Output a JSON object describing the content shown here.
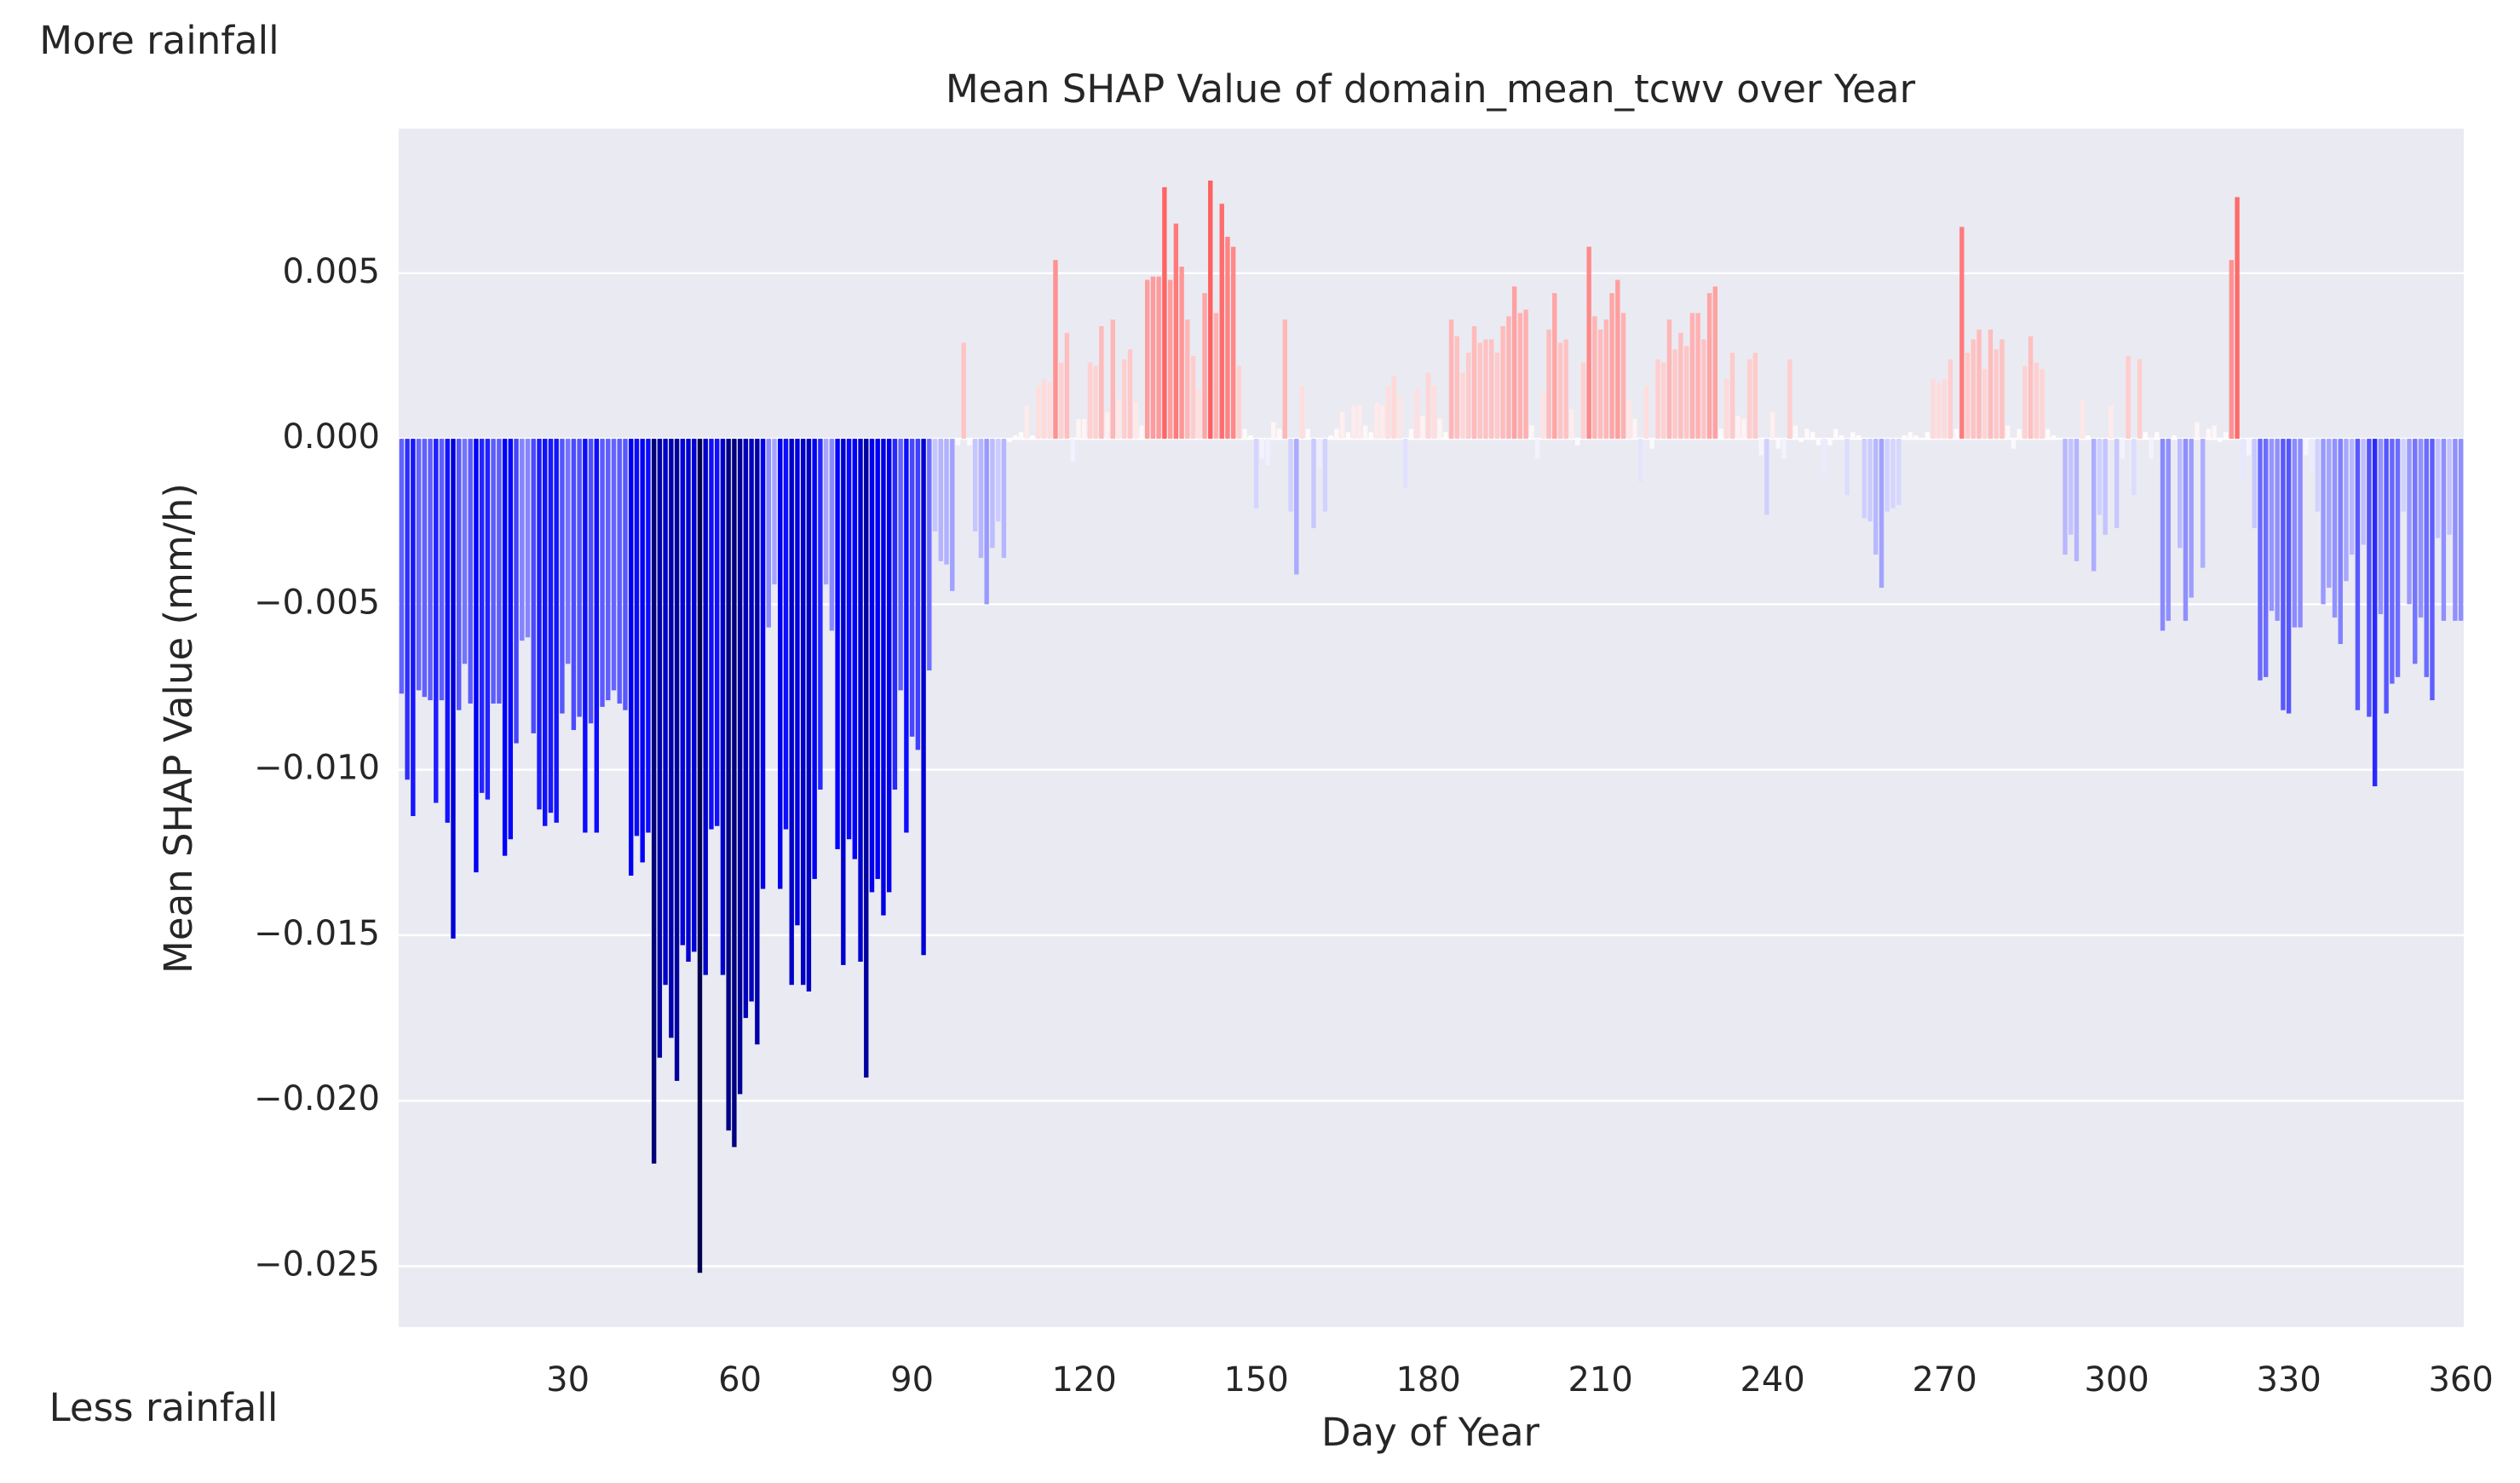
{
  "chart_data": {
    "type": "bar",
    "title": "Mean SHAP Value of domain_mean_tcwv over Year",
    "xlabel": "Day of Year",
    "ylabel": "Mean SHAP Value (mm/h)",
    "annotations": [
      "More rainfall",
      "Less rainfall"
    ],
    "colormap": "seismic",
    "color_range": [
      -0.025,
      0.025
    ],
    "grid": true,
    "xlim": [
      0.5,
      360.5
    ],
    "ylim": [
      -0.02684,
      0.00937
    ],
    "xticks": [
      30,
      60,
      90,
      120,
      150,
      180,
      210,
      240,
      270,
      300,
      330,
      360
    ],
    "yticks": [
      {
        "value": -0.025,
        "label": "−0.025"
      },
      {
        "value": -0.02,
        "label": "−0.020"
      },
      {
        "value": -0.015,
        "label": "−0.015"
      },
      {
        "value": -0.01,
        "label": "−0.010"
      },
      {
        "value": -0.005,
        "label": "−0.005"
      },
      {
        "value": 0,
        "label": "0.000"
      },
      {
        "value": 0.005,
        "label": "0.005"
      }
    ],
    "x": [
      1,
      2,
      3,
      4,
      5,
      6,
      7,
      8,
      9,
      10,
      11,
      12,
      13,
      14,
      15,
      16,
      17,
      18,
      19,
      20,
      21,
      22,
      23,
      24,
      25,
      26,
      27,
      28,
      29,
      30,
      31,
      32,
      33,
      34,
      35,
      36,
      37,
      38,
      39,
      40,
      41,
      42,
      43,
      44,
      45,
      46,
      47,
      48,
      49,
      50,
      51,
      52,
      53,
      54,
      55,
      56,
      57,
      58,
      59,
      60,
      61,
      62,
      63,
      64,
      65,
      66,
      67,
      68,
      69,
      70,
      71,
      72,
      73,
      74,
      75,
      76,
      77,
      78,
      79,
      80,
      81,
      82,
      83,
      84,
      85,
      86,
      87,
      88,
      89,
      90,
      91,
      92,
      93,
      94,
      95,
      96,
      97,
      98,
      99,
      100,
      101,
      102,
      103,
      104,
      105,
      106,
      107,
      108,
      109,
      110,
      111,
      112,
      113,
      114,
      115,
      116,
      117,
      118,
      119,
      120,
      121,
      122,
      123,
      124,
      125,
      126,
      127,
      128,
      129,
      130,
      131,
      132,
      133,
      134,
      135,
      136,
      137,
      138,
      139,
      140,
      141,
      142,
      143,
      144,
      145,
      146,
      147,
      148,
      149,
      150,
      151,
      152,
      153,
      154,
      155,
      156,
      157,
      158,
      159,
      160,
      161,
      162,
      163,
      164,
      165,
      166,
      167,
      168,
      169,
      170,
      171,
      172,
      173,
      174,
      175,
      176,
      177,
      178,
      179,
      180,
      181,
      182,
      183,
      184,
      185,
      186,
      187,
      188,
      189,
      190,
      191,
      192,
      193,
      194,
      195,
      196,
      197,
      198,
      199,
      200,
      201,
      202,
      203,
      204,
      205,
      206,
      207,
      208,
      209,
      210,
      211,
      212,
      213,
      214,
      215,
      216,
      217,
      218,
      219,
      220,
      221,
      222,
      223,
      224,
      225,
      226,
      227,
      228,
      229,
      230,
      231,
      232,
      233,
      234,
      235,
      236,
      237,
      238,
      239,
      240,
      241,
      242,
      243,
      244,
      245,
      246,
      247,
      248,
      249,
      250,
      251,
      252,
      253,
      254,
      255,
      256,
      257,
      258,
      259,
      260,
      261,
      262,
      263,
      264,
      265,
      266,
      267,
      268,
      269,
      270,
      271,
      272,
      273,
      274,
      275,
      276,
      277,
      278,
      279,
      280,
      281,
      282,
      283,
      284,
      285,
      286,
      287,
      288,
      289,
      290,
      291,
      292,
      293,
      294,
      295,
      296,
      297,
      298,
      299,
      300,
      301,
      302,
      303,
      304,
      305,
      306,
      307,
      308,
      309,
      310,
      311,
      312,
      313,
      314,
      315,
      316,
      317,
      318,
      319,
      320,
      321,
      322,
      323,
      324,
      325,
      326,
      327,
      328,
      329,
      330,
      331,
      332,
      333,
      334,
      335,
      336,
      337,
      338,
      339,
      340,
      341,
      342,
      343,
      344,
      345,
      346,
      347,
      348,
      349,
      350,
      351,
      352,
      353,
      354,
      355,
      356,
      357,
      358,
      359,
      360
    ],
    "values": [
      -0.0077,
      -0.0103,
      -0.0114,
      -0.0076,
      -0.0078,
      -0.0079,
      -0.011,
      -0.0079,
      -0.0116,
      -0.0151,
      -0.0082,
      -0.0068,
      -0.008,
      -0.0131,
      -0.0107,
      -0.0109,
      -0.008,
      -0.008,
      -0.0126,
      -0.0121,
      -0.0092,
      -0.0061,
      -0.006,
      -0.0089,
      -0.0112,
      -0.0117,
      -0.0113,
      -0.0116,
      -0.0083,
      -0.0068,
      -0.0088,
      -0.0084,
      -0.0119,
      -0.0086,
      -0.0119,
      -0.0081,
      -0.0079,
      -0.0076,
      -0.008,
      -0.0082,
      -0.0132,
      -0.012,
      -0.0128,
      -0.0119,
      -0.0219,
      -0.0187,
      -0.0165,
      -0.0181,
      -0.0194,
      -0.0153,
      -0.0158,
      -0.0155,
      -0.0252,
      -0.0162,
      -0.0118,
      -0.0117,
      -0.0162,
      -0.0209,
      -0.0214,
      -0.0198,
      -0.0175,
      -0.017,
      -0.0183,
      -0.0136,
      -0.0057,
      -0.0044,
      -0.0136,
      -0.0118,
      -0.0165,
      -0.0147,
      -0.0165,
      -0.0167,
      -0.0133,
      -0.0106,
      -0.0044,
      -0.0058,
      -0.0124,
      -0.0159,
      -0.0121,
      -0.0127,
      -0.0158,
      -0.0193,
      -0.0137,
      -0.0133,
      -0.0144,
      -0.0137,
      -0.0106,
      -0.0076,
      -0.0119,
      -0.009,
      -0.0094,
      -0.0156,
      -0.007,
      -0.0028,
      -0.0037,
      -0.0038,
      -0.0046,
      -0.0002,
      0.0029,
      -0.0002,
      -0.0028,
      -0.0036,
      -0.005,
      -0.0033,
      -0.0025,
      -0.0036,
      -0.0001,
      0.0001,
      0.0002,
      0.001,
      0.0001,
      0.0016,
      0.0018,
      0.0017,
      0.0054,
      0.0023,
      0.0032,
      -0.0007,
      0.0006,
      0.0006,
      0.0023,
      0.0022,
      0.0034,
      0.0008,
      0.0036,
      0.0012,
      0.0024,
      0.0027,
      0.0011,
      0.0004,
      0.0048,
      0.0049,
      0.0049,
      0.0076,
      0.0048,
      0.0065,
      0.0052,
      0.0036,
      0.0025,
      0.0015,
      0.0044,
      0.0078,
      0.0038,
      0.0071,
      0.0061,
      0.0058,
      0.0022,
      0.0003,
      0.0001,
      -0.0021,
      -0.0006,
      -0.0008,
      0.0005,
      0.0003,
      0.0036,
      -0.0022,
      -0.0041,
      0.0016,
      0.0003,
      -0.0027,
      -0.0009,
      -0.0022,
      0.0001,
      0.0003,
      0.0008,
      0.0002,
      0.001,
      0.001,
      0.0004,
      0.0002,
      0.0011,
      0.001,
      0.0016,
      0.0019,
      0.0013,
      -0.0015,
      0.0003,
      0.0015,
      0.0007,
      0.002,
      0.0016,
      0.0006,
      0.0002,
      0.0036,
      0.0031,
      0.002,
      0.0026,
      0.0034,
      0.0029,
      0.003,
      0.003,
      0.0026,
      0.0034,
      0.0037,
      0.0046,
      0.0038,
      0.0039,
      0.0004,
      -0.0006,
      0.0014,
      0.0033,
      0.0044,
      0.0029,
      0.003,
      0.0009,
      -0.0002,
      0.0023,
      0.0058,
      0.0037,
      0.0033,
      0.0036,
      0.0044,
      0.0048,
      0.0038,
      0.0012,
      0.0006,
      -0.0013,
      0.0016,
      -0.0003,
      0.0024,
      0.0023,
      0.0036,
      0.0027,
      0.0032,
      0.0028,
      0.0038,
      0.0038,
      0.003,
      0.0044,
      0.0046,
      0.0003,
      0.0018,
      0.0026,
      0.0007,
      0.0006,
      0.0024,
      0.0026,
      -0.0005,
      -0.0023,
      0.0008,
      -0.0003,
      -0.0006,
      0.0024,
      0.0004,
      -0.0001,
      0.0003,
      0.0002,
      -0.0002,
      -0.001,
      -0.0002,
      0.0003,
      0.0001,
      -0.0017,
      0.0002,
      0.0001,
      -0.0024,
      -0.0025,
      -0.0035,
      -0.0045,
      -0.0022,
      -0.0021,
      -0.002,
      0.0001,
      0.0002,
      0.0001,
      0,
      0.0002,
      0.0018,
      0.0017,
      0.0018,
      0.0024,
      0.0003,
      0.0064,
      0.0026,
      0.003,
      0.0033,
      0.0021,
      0.0033,
      0.0027,
      0.003,
      0.0004,
      -0.0003,
      0.0003,
      0.0022,
      0.0031,
      0.0023,
      0.0021,
      0.0003,
      0.0001,
      0,
      -0.0035,
      -0.0029,
      -0.0037,
      0.0012,
      0.0001,
      -0.004,
      -0.0023,
      -0.0029,
      0.001,
      -0.0027,
      -0.0006,
      0.0025,
      -0.0017,
      0.0024,
      0.0002,
      -0.0006,
      0.0002,
      -0.0058,
      -0.0055,
      0.0001,
      -0.0033,
      -0.0055,
      -0.0048,
      0.0005,
      -0.0039,
      0.0003,
      0.0004,
      -0.0001,
      0.0002,
      0.0054,
      0.0073,
      -0.0012,
      -0.0005,
      -0.0027,
      -0.0073,
      -0.0072,
      -0.0052,
      -0.0055,
      -0.0082,
      -0.0083,
      -0.0057,
      -0.0057,
      -0.0005,
      -0.001,
      -0.0022,
      -0.005,
      -0.0045,
      -0.0054,
      -0.0062,
      -0.0043,
      -0.0035,
      -0.0082,
      -0.0032,
      -0.0084,
      -0.0105,
      -0.0053,
      -0.0083,
      -0.0074,
      -0.0072,
      -0.0022,
      -0.005,
      -0.0068,
      -0.0054,
      -0.0072,
      -0.0079,
      -0.003,
      -0.0055,
      -0.0029,
      -0.0055,
      -0.0055
    ]
  }
}
